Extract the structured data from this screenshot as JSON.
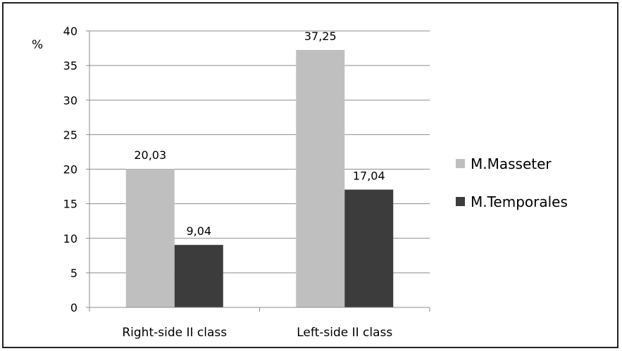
{
  "chart_data": {
    "type": "bar",
    "ylabel": "%",
    "categories": [
      "Right-side II class",
      "Left-side II class"
    ],
    "series": [
      {
        "name": "M.Masseter",
        "values": [
          20.03,
          37.25
        ],
        "labels": [
          "20,03",
          "37,25"
        ],
        "color": "#bfbfbf"
      },
      {
        "name": "M.Temporales",
        "values": [
          9.04,
          17.04
        ],
        "labels": [
          "9,04",
          "17,04"
        ],
        "color": "#3c3c3c"
      }
    ],
    "ylim": [
      0,
      40
    ],
    "yticks": [
      0,
      5,
      10,
      15,
      20,
      25,
      30,
      35,
      40
    ],
    "grid": true,
    "legend": "right"
  }
}
